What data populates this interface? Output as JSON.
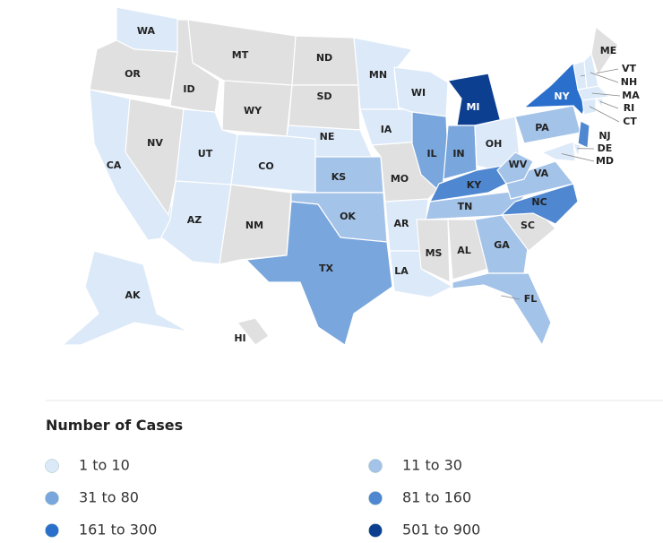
{
  "legend": {
    "title": "Number of Cases",
    "no_data_color": "#e0e0e0",
    "items": [
      {
        "label": "1 to 10",
        "color": "#dce9f8"
      },
      {
        "label": "11 to 30",
        "color": "#a4c3e8"
      },
      {
        "label": "31 to 80",
        "color": "#79a6dc"
      },
      {
        "label": "81 to 160",
        "color": "#4f87d0"
      },
      {
        "label": "161 to 300",
        "color": "#2b6fcc"
      },
      {
        "label": "501 to 900",
        "color": "#0d3f91"
      }
    ]
  },
  "states": [
    {
      "label": "WA",
      "bin": 0
    },
    {
      "label": "OR",
      "bin": null
    },
    {
      "label": "CA",
      "bin": 0
    },
    {
      "label": "NV",
      "bin": null
    },
    {
      "label": "ID",
      "bin": null
    },
    {
      "label": "MT",
      "bin": null
    },
    {
      "label": "WY",
      "bin": null
    },
    {
      "label": "UT",
      "bin": 0
    },
    {
      "label": "CO",
      "bin": 0
    },
    {
      "label": "AZ",
      "bin": 0
    },
    {
      "label": "NM",
      "bin": null
    },
    {
      "label": "ND",
      "bin": null
    },
    {
      "label": "SD",
      "bin": null
    },
    {
      "label": "NE",
      "bin": 0
    },
    {
      "label": "KS",
      "bin": 1
    },
    {
      "label": "OK",
      "bin": 1
    },
    {
      "label": "TX",
      "bin": 2
    },
    {
      "label": "MN",
      "bin": 0
    },
    {
      "label": "IA",
      "bin": 0
    },
    {
      "label": "MO",
      "bin": null
    },
    {
      "label": "AR",
      "bin": 0
    },
    {
      "label": "LA",
      "bin": 0
    },
    {
      "label": "WI",
      "bin": 0
    },
    {
      "label": "IL",
      "bin": 2
    },
    {
      "label": "MI",
      "bin": 5
    },
    {
      "label": "IN",
      "bin": 2
    },
    {
      "label": "OH",
      "bin": 0
    },
    {
      "label": "KY",
      "bin": 3
    },
    {
      "label": "TN",
      "bin": 1
    },
    {
      "label": "MS",
      "bin": null
    },
    {
      "label": "AL",
      "bin": null
    },
    {
      "label": "GA",
      "bin": 1
    },
    {
      "label": "FL",
      "bin": 1
    },
    {
      "label": "SC",
      "bin": null
    },
    {
      "label": "NC",
      "bin": 3
    },
    {
      "label": "VA",
      "bin": 1
    },
    {
      "label": "WV",
      "bin": 1
    },
    {
      "label": "PA",
      "bin": 1
    },
    {
      "label": "NY",
      "bin": 4
    },
    {
      "label": "ME",
      "bin": null
    },
    {
      "label": "VT",
      "bin": 0
    },
    {
      "label": "NH",
      "bin": 0
    },
    {
      "label": "MA",
      "bin": 0
    },
    {
      "label": "RI",
      "bin": 0
    },
    {
      "label": "CT",
      "bin": 0
    },
    {
      "label": "NJ",
      "bin": 3
    },
    {
      "label": "DE",
      "bin": 0
    },
    {
      "label": "MD",
      "bin": 0
    },
    {
      "label": "AK",
      "bin": 0
    },
    {
      "label": "HI",
      "bin": null
    }
  ]
}
